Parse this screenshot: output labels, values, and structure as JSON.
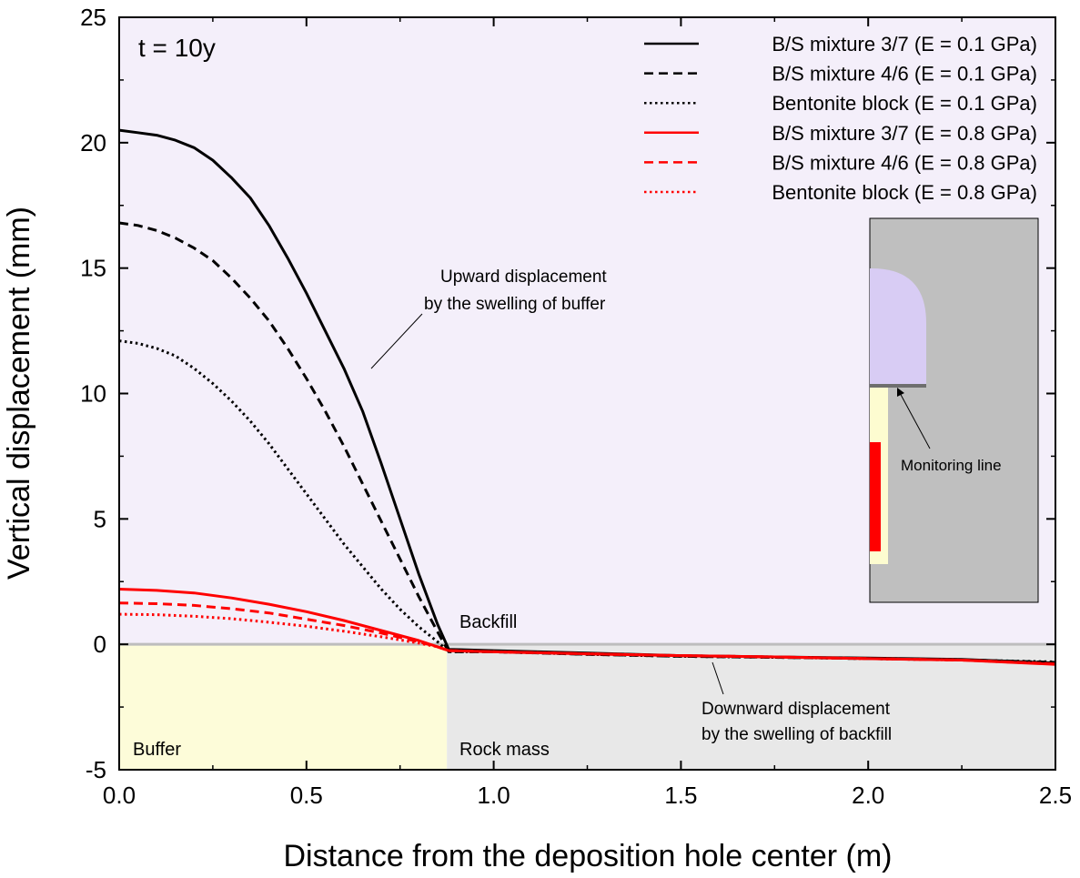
{
  "chart_data": {
    "type": "line",
    "annotation_time": "t = 10y",
    "xlabel": "Distance from the deposition hole center (m)",
    "ylabel": "Vertical displacement (mm)",
    "xlim": [
      0,
      2.5
    ],
    "ylim": [
      -5,
      25
    ],
    "xticks": [
      "0.0",
      "0.5",
      "1.0",
      "1.5",
      "2.0",
      "2.5"
    ],
    "yticks": [
      "-5",
      "0",
      "5",
      "10",
      "15",
      "20",
      "25"
    ],
    "grid": false,
    "legend_position": "top-right",
    "regions": {
      "buffer": "Buffer",
      "rock": "Rock mass",
      "backfill": "Backfill"
    },
    "annotations": {
      "upward_line1": "Upward displacement",
      "upward_line2": "by the swelling of buffer",
      "downward_line1": "Downward displacement",
      "downward_line2": "by the swelling of backfill",
      "monitoring": "Monitoring line"
    },
    "colors": {
      "background": "#f4effa",
      "buffer": "#fdfcd9",
      "rock": "#e8e8e8",
      "zero_line": "#bdbdbd",
      "black_series": "#000000",
      "red_series": "#ff0000",
      "inset_rock": "#bfbfbf",
      "inset_backfill": "#d8ccf4",
      "inset_buffer": "#fdfcd0",
      "inset_canister": "#ff0000",
      "inset_line": "#6e6e6e"
    },
    "series": [
      {
        "name": "B/S mixture 3/7 (E = 0.1 GPa)",
        "color": "#000000",
        "dash": "solid",
        "x": [
          0,
          0.05,
          0.1,
          0.15,
          0.2,
          0.25,
          0.3,
          0.35,
          0.4,
          0.45,
          0.5,
          0.55,
          0.6,
          0.65,
          0.7,
          0.75,
          0.8,
          0.85,
          0.88,
          1.0,
          1.25,
          1.5,
          1.75,
          2.0,
          2.25,
          2.5
        ],
        "y": [
          20.5,
          20.4,
          20.3,
          20.1,
          19.8,
          19.3,
          18.6,
          17.8,
          16.7,
          15.4,
          14.0,
          12.5,
          11.0,
          9.3,
          7.2,
          5.0,
          2.8,
          0.8,
          -0.2,
          -0.25,
          -0.35,
          -0.45,
          -0.5,
          -0.55,
          -0.6,
          -0.75
        ]
      },
      {
        "name": "B/S mixture 4/6 (E = 0.1 GPa)",
        "color": "#000000",
        "dash": "dashed",
        "x": [
          0,
          0.05,
          0.1,
          0.15,
          0.2,
          0.25,
          0.3,
          0.35,
          0.4,
          0.45,
          0.5,
          0.55,
          0.6,
          0.65,
          0.7,
          0.75,
          0.8,
          0.85,
          0.88,
          1.0,
          1.25,
          1.5,
          1.75,
          2.0,
          2.25,
          2.5
        ],
        "y": [
          16.8,
          16.7,
          16.5,
          16.2,
          15.8,
          15.3,
          14.6,
          13.8,
          12.9,
          11.8,
          10.6,
          9.3,
          7.9,
          6.4,
          4.9,
          3.4,
          1.9,
          0.5,
          -0.3,
          -0.3,
          -0.4,
          -0.48,
          -0.52,
          -0.57,
          -0.62,
          -0.72
        ]
      },
      {
        "name": "Bentonite block (E = 0.1 GPa)",
        "color": "#000000",
        "dash": "dotted",
        "x": [
          0,
          0.05,
          0.1,
          0.15,
          0.2,
          0.25,
          0.3,
          0.35,
          0.4,
          0.45,
          0.5,
          0.55,
          0.6,
          0.65,
          0.7,
          0.75,
          0.8,
          0.85,
          0.88,
          1.0,
          1.25,
          1.5,
          1.75,
          2.0,
          2.25,
          2.5
        ],
        "y": [
          12.1,
          12.0,
          11.8,
          11.5,
          11.0,
          10.4,
          9.7,
          8.9,
          8.0,
          7.0,
          6.0,
          5.0,
          4.0,
          3.1,
          2.2,
          1.4,
          0.7,
          0.1,
          -0.3,
          -0.3,
          -0.4,
          -0.48,
          -0.52,
          -0.57,
          -0.62,
          -0.7
        ]
      },
      {
        "name": "B/S mixture 3/7 (E = 0.8 GPa)",
        "color": "#ff0000",
        "dash": "solid",
        "x": [
          0,
          0.1,
          0.2,
          0.3,
          0.4,
          0.5,
          0.6,
          0.7,
          0.8,
          0.85,
          0.88,
          1.0,
          1.25,
          1.5,
          1.75,
          2.0,
          2.25,
          2.5
        ],
        "y": [
          2.2,
          2.15,
          2.05,
          1.85,
          1.6,
          1.3,
          0.95,
          0.55,
          0.15,
          -0.1,
          -0.25,
          -0.3,
          -0.38,
          -0.45,
          -0.5,
          -0.57,
          -0.63,
          -0.8
        ]
      },
      {
        "name": "B/S mixture 4/6 (E = 0.8 GPa)",
        "color": "#ff0000",
        "dash": "dashed",
        "x": [
          0,
          0.1,
          0.2,
          0.3,
          0.4,
          0.5,
          0.6,
          0.7,
          0.8,
          0.85,
          0.88,
          1.0,
          1.25,
          1.5,
          1.75,
          2.0,
          2.25,
          2.5
        ],
        "y": [
          1.65,
          1.62,
          1.55,
          1.42,
          1.25,
          1.0,
          0.75,
          0.45,
          0.1,
          -0.1,
          -0.25,
          -0.3,
          -0.38,
          -0.45,
          -0.5,
          -0.57,
          -0.63,
          -0.78
        ]
      },
      {
        "name": "Bentonite block (E = 0.8 GPa)",
        "color": "#ff0000",
        "dash": "dotted",
        "x": [
          0,
          0.1,
          0.2,
          0.3,
          0.4,
          0.5,
          0.6,
          0.7,
          0.8,
          0.85,
          0.88,
          1.0,
          1.25,
          1.5,
          1.75,
          2.0,
          2.25,
          2.5
        ],
        "y": [
          1.2,
          1.18,
          1.12,
          1.02,
          0.88,
          0.72,
          0.52,
          0.3,
          0.05,
          -0.1,
          -0.25,
          -0.3,
          -0.38,
          -0.45,
          -0.5,
          -0.57,
          -0.63,
          -0.78
        ]
      }
    ]
  }
}
